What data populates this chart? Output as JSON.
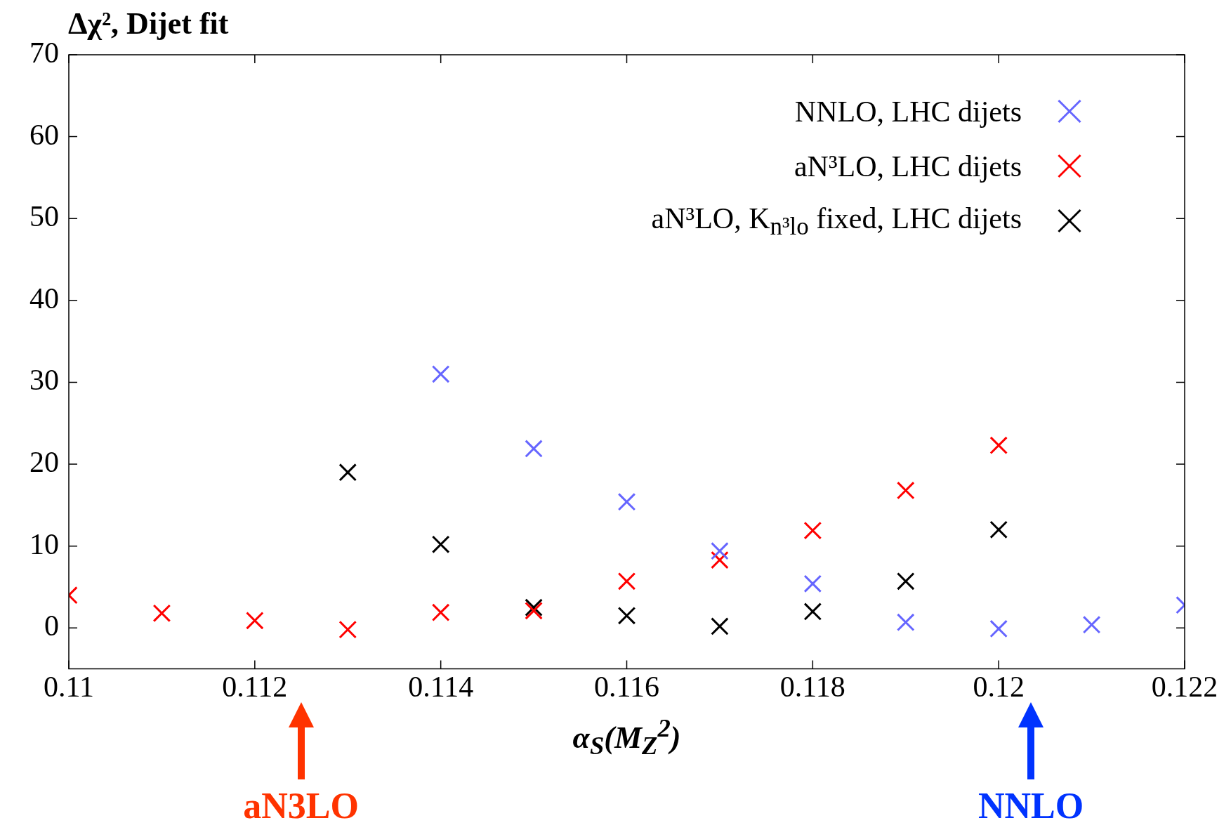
{
  "chart_data": {
    "type": "scatter",
    "title": "Δχ², Dijet fit",
    "xlabel": "α$_{S}$(M$_{Z}$$^{2}$)",
    "xlim": [
      0.11,
      0.122
    ],
    "xticks": [
      0.11,
      0.112,
      0.114,
      0.116,
      0.118,
      0.12,
      0.122
    ],
    "ylim": [
      -5,
      70
    ],
    "yticks": [
      0,
      10,
      20,
      30,
      40,
      50,
      60,
      70
    ],
    "marker": "cross",
    "grid": false,
    "legend": "top right",
    "series": [
      {
        "name": "NNLO, LHC dijets",
        "color": "#6666ff",
        "x": [
          0.114,
          0.115,
          0.116,
          0.117,
          0.118,
          0.119,
          0.12,
          0.121,
          0.122
        ],
        "values": [
          31.0,
          21.9,
          15.4,
          9.4,
          5.4,
          0.7,
          -0.1,
          0.4,
          2.8
        ]
      },
      {
        "name": "aN³LO, LHC dijets",
        "color": "#ff0000",
        "x": [
          0.11,
          0.111,
          0.112,
          0.113,
          0.114,
          0.115,
          0.116,
          0.117,
          0.118,
          0.119,
          0.12
        ],
        "values": [
          4.0,
          1.8,
          0.9,
          -0.2,
          1.9,
          2.1,
          5.7,
          8.3,
          11.9,
          16.8,
          22.3
        ]
      },
      {
        "name": "aN³LO, K$_{n³lo}$ fixed, LHC dijets",
        "color": "#000000",
        "x": [
          0.113,
          0.114,
          0.115,
          0.116,
          0.117,
          0.118,
          0.119,
          0.12
        ],
        "values": [
          19.0,
          10.2,
          2.5,
          1.5,
          0.2,
          2.0,
          5.7,
          12.0
        ]
      }
    ],
    "annotations": [
      "aN3LO",
      "NNLO"
    ]
  }
}
